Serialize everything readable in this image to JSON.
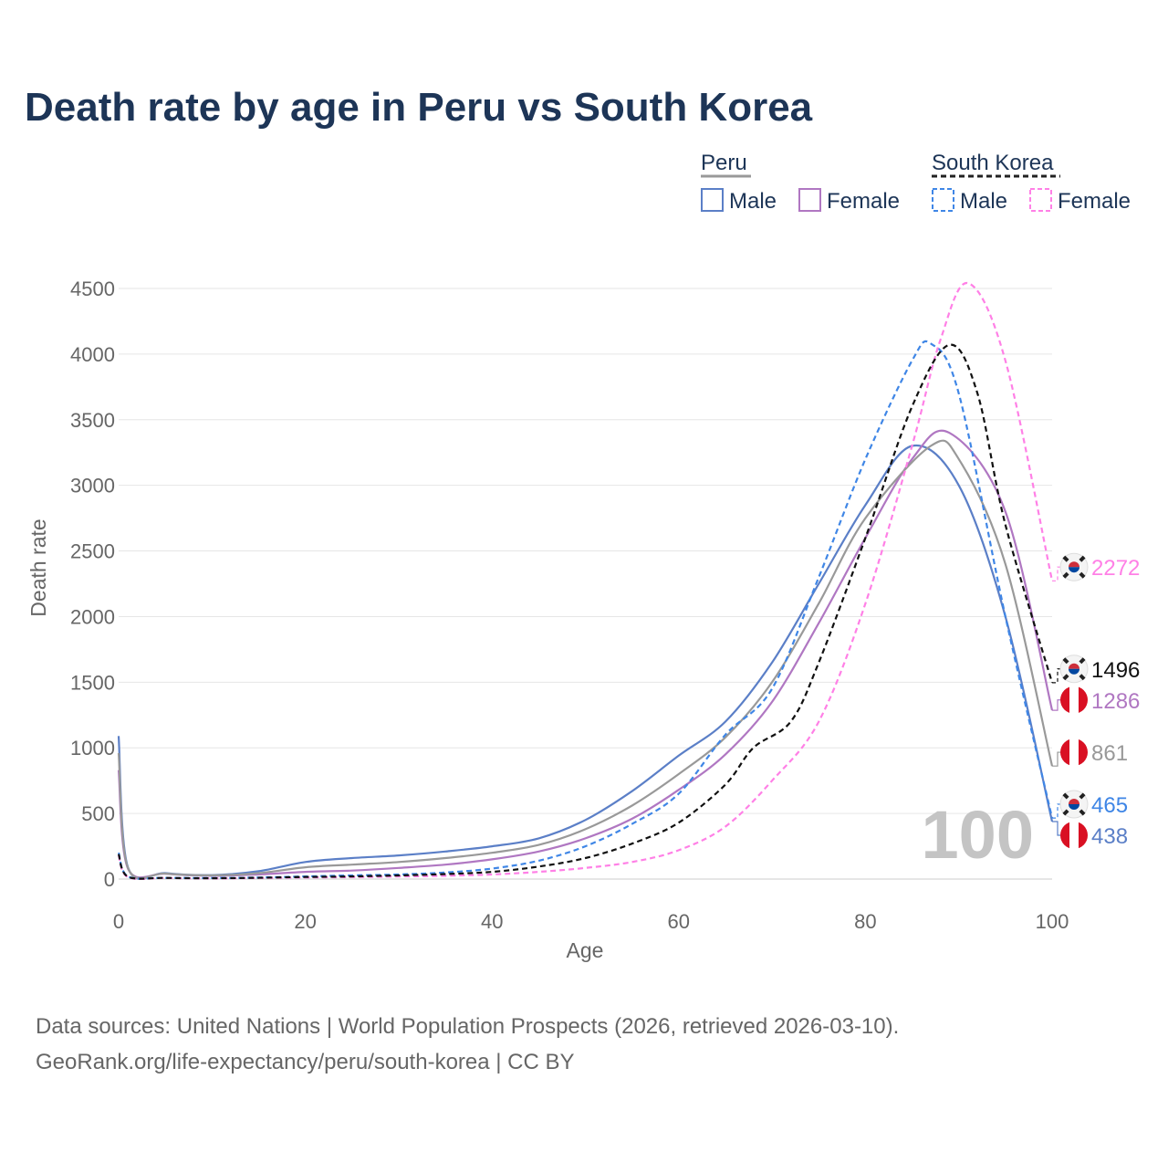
{
  "chart_data": {
    "type": "line",
    "title": "Death rate by age in Peru vs South Korea",
    "xlabel": "Age",
    "ylabel": "Death rate",
    "xlim": [
      0,
      100
    ],
    "ylim": [
      0,
      4500
    ],
    "x_ticks": [
      0,
      20,
      40,
      60,
      80,
      100
    ],
    "y_ticks": [
      0,
      500,
      1000,
      1500,
      2000,
      2500,
      3000,
      3500,
      4000,
      4500
    ],
    "grid": true,
    "watermark_label": "100",
    "legend": {
      "placement": "top-right",
      "groups": [
        {
          "label": "Peru",
          "line_color": "#999999",
          "dashed": false,
          "items": [
            "Male",
            "Female"
          ]
        },
        {
          "label": "South Korea",
          "line_color": "#222222",
          "dashed": true,
          "items": [
            "Male",
            "Female"
          ]
        }
      ]
    },
    "series": [
      {
        "name": "Peru Male",
        "country": "Peru",
        "sex": "Male",
        "color": "#5b7fc7",
        "dashed": false,
        "end_label": "438",
        "x": [
          0,
          1,
          5,
          10,
          15,
          20,
          25,
          30,
          35,
          40,
          45,
          50,
          55,
          60,
          65,
          70,
          75,
          80,
          85,
          90,
          95,
          100
        ],
        "y": [
          1090,
          90,
          45,
          30,
          60,
          130,
          160,
          180,
          210,
          250,
          310,
          450,
          670,
          940,
          1200,
          1650,
          2250,
          2850,
          3300,
          3000,
          2000,
          438
        ]
      },
      {
        "name": "Peru Female",
        "country": "Peru",
        "sex": "Female",
        "color": "#b077c2",
        "dashed": false,
        "end_label": "1286",
        "x": [
          0,
          1,
          5,
          10,
          15,
          20,
          25,
          30,
          35,
          40,
          45,
          50,
          55,
          60,
          65,
          70,
          75,
          80,
          85,
          89,
          95,
          100
        ],
        "y": [
          830,
          80,
          40,
          25,
          35,
          55,
          65,
          85,
          110,
          150,
          210,
          310,
          460,
          680,
          950,
          1350,
          1950,
          2600,
          3200,
          3400,
          2800,
          1286
        ]
      },
      {
        "name": "Peru Total",
        "country": "Peru",
        "sex": "Total",
        "color": "#999999",
        "dashed": false,
        "end_label": "861",
        "x": [
          0,
          1,
          5,
          10,
          15,
          20,
          25,
          30,
          35,
          40,
          45,
          50,
          55,
          60,
          65,
          70,
          75,
          80,
          87,
          90,
          95,
          100
        ],
        "y": [
          960,
          85,
          42,
          28,
          45,
          90,
          110,
          130,
          160,
          200,
          260,
          380,
          560,
          800,
          1080,
          1500,
          2100,
          2750,
          3300,
          3200,
          2400,
          861
        ]
      },
      {
        "name": "South Korea Male",
        "country": "South Korea",
        "sex": "Male",
        "color": "#3f86e6",
        "dashed": true,
        "end_label": "465",
        "x": [
          0,
          1,
          5,
          10,
          15,
          20,
          25,
          30,
          35,
          40,
          45,
          50,
          55,
          60,
          65,
          70,
          75,
          80,
          85,
          87,
          90,
          95,
          100
        ],
        "y": [
          200,
          20,
          10,
          8,
          12,
          20,
          28,
          35,
          50,
          80,
          140,
          250,
          420,
          650,
          1100,
          1450,
          2300,
          3200,
          3950,
          4080,
          3700,
          2000,
          465
        ]
      },
      {
        "name": "South Korea Female",
        "country": "South Korea",
        "sex": "Female",
        "color": "#ff80e6",
        "dashed": true,
        "end_label": "2272",
        "x": [
          0,
          1,
          5,
          10,
          15,
          20,
          25,
          30,
          35,
          40,
          45,
          50,
          55,
          60,
          65,
          70,
          75,
          80,
          85,
          88,
          91,
          95,
          100
        ],
        "y": [
          180,
          15,
          8,
          5,
          8,
          12,
          15,
          20,
          25,
          35,
          55,
          85,
          130,
          220,
          400,
          750,
          1200,
          2100,
          3300,
          4100,
          4540,
          3950,
          2272
        ]
      },
      {
        "name": "South Korea Total",
        "country": "South Korea",
        "sex": "Total",
        "color": "#111111",
        "dashed": true,
        "end_label": "1496",
        "x": [
          0,
          1,
          5,
          10,
          15,
          20,
          25,
          30,
          35,
          40,
          45,
          50,
          55,
          60,
          65,
          68,
          72,
          75,
          80,
          85,
          89,
          92,
          95,
          100
        ],
        "y": [
          190,
          18,
          9,
          6,
          10,
          16,
          20,
          28,
          38,
          55,
          95,
          160,
          270,
          430,
          720,
          1000,
          1200,
          1650,
          2600,
          3600,
          4070,
          3700,
          2700,
          1496
        ]
      }
    ],
    "sources": [
      "Data sources: United Nations | World Population Prospects (2026, retrieved 2026-03-10).",
      "GeoRank.org/life-expectancy/peru/south-korea | CC BY"
    ]
  }
}
